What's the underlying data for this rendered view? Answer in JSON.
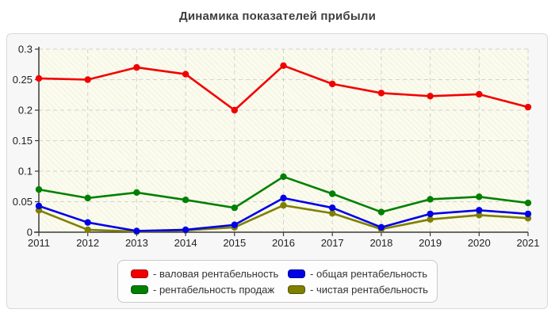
{
  "chart_data": {
    "type": "line",
    "title": "Динамика показателей прибыли",
    "x": [
      "2011",
      "2012",
      "2013",
      "2014",
      "2015",
      "2016",
      "2017",
      "2018",
      "2019",
      "2020",
      "2021"
    ],
    "series": [
      {
        "name": "валовая рентабельность",
        "legend_label": "- валовая рентабельность",
        "color": "#f20000",
        "swatch_border": "#aa0000",
        "values": [
          0.252,
          0.25,
          0.27,
          0.259,
          0.2,
          0.273,
          0.243,
          0.228,
          0.223,
          0.226,
          0.205
        ]
      },
      {
        "name": "общая рентабельность",
        "legend_label": "- общая рентабельность",
        "color": "#0000e6",
        "swatch_border": "#000099",
        "values": [
          0.043,
          0.016,
          0.002,
          0.004,
          0.012,
          0.056,
          0.04,
          0.008,
          0.03,
          0.036,
          0.03
        ]
      },
      {
        "name": "рентабельность продаж",
        "legend_label": "- рентабельность продаж",
        "color": "#008000",
        "swatch_border": "#005500",
        "values": [
          0.07,
          0.056,
          0.065,
          0.053,
          0.04,
          0.091,
          0.063,
          0.033,
          0.054,
          0.058,
          0.048
        ]
      },
      {
        "name": "чистая рентабельность",
        "legend_label": "- чистая рентабельность",
        "color": "#7f7f00",
        "swatch_border": "#555500",
        "values": [
          0.036,
          0.004,
          0.001,
          0.003,
          0.008,
          0.044,
          0.031,
          0.005,
          0.021,
          0.028,
          0.023
        ]
      }
    ],
    "ylim": [
      0,
      0.3
    ],
    "ytick_labels": [
      "0",
      "0.05",
      "0.1",
      "0.15",
      "0.2",
      "0.25",
      "0.3"
    ],
    "grid": true,
    "legend_position": "bottom-center",
    "axis_color": "#3a3a3a",
    "grid_color": "#d2d2d2",
    "tick_label_color": "#222222"
  }
}
